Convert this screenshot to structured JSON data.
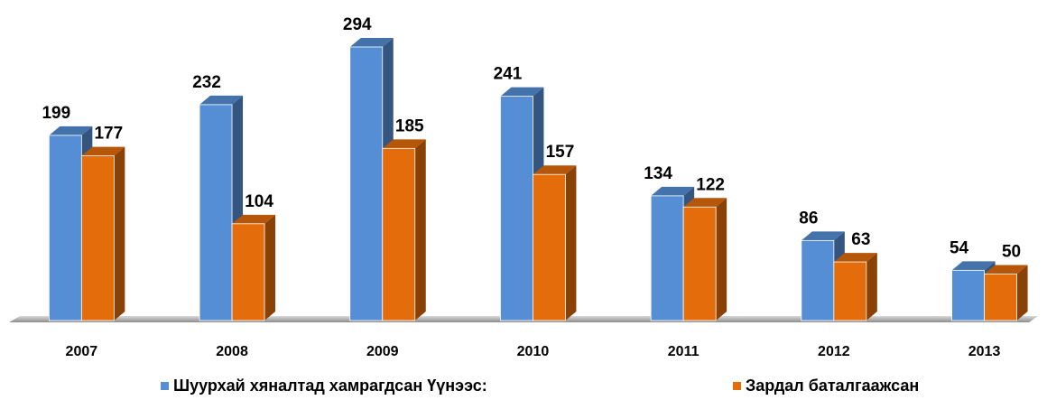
{
  "chart_data": {
    "type": "bar3d",
    "categories": [
      "2007",
      "2008",
      "2009",
      "2010",
      "2011",
      "2012",
      "2013"
    ],
    "series": [
      {
        "name": "Шуурхай хяналтад хамрагдсан Үүнээс:",
        "color": "#558ed5",
        "values": [
          199,
          232,
          294,
          241,
          134,
          86,
          54
        ]
      },
      {
        "name": "Зардал баталгаажсан",
        "color": "#e46c0a",
        "values": [
          177,
          104,
          185,
          157,
          122,
          63,
          50
        ]
      }
    ]
  }
}
